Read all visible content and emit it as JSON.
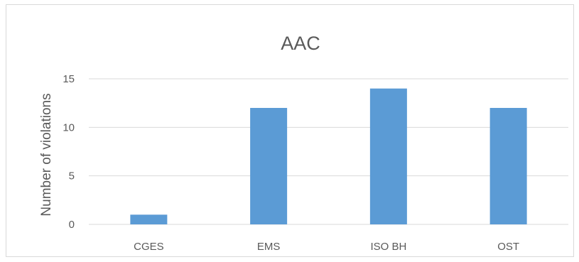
{
  "chart_data": {
    "type": "bar",
    "title": "AAC",
    "xlabel": "",
    "ylabel": "Number of violations",
    "categories": [
      "CGES",
      "EMS",
      "ISO BH",
      "OST"
    ],
    "series": [
      {
        "values": [
          1,
          12,
          14,
          12
        ]
      }
    ],
    "ylim": [
      0,
      15
    ],
    "yticks": [
      0,
      5,
      10,
      15
    ],
    "grid": true,
    "legend": "none",
    "bar_color": "#5b9bd5",
    "grid_color": "#d9d9d9"
  }
}
